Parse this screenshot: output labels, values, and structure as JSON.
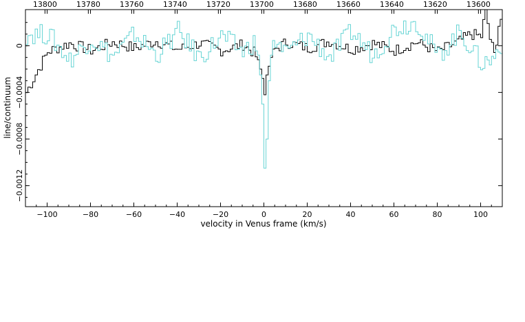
{
  "chart_data": {
    "type": "line",
    "title": "",
    "xlabel": "velocity in Venus frame (km/s)",
    "ylabel": "line/continuum",
    "xlim": [
      -110,
      110
    ],
    "ylim": [
      -0.00138,
      0.00031
    ],
    "x_ticks": [
      -100,
      -80,
      -60,
      -40,
      -20,
      0,
      20,
      40,
      60,
      80,
      100
    ],
    "x_tick_labels": [
      "−100",
      "−80",
      "−60",
      "−40",
      "−20",
      "0",
      "20",
      "40",
      "60",
      "80",
      "100"
    ],
    "y_ticks": [
      0,
      -0.0004,
      -0.0008,
      -0.0012
    ],
    "y_tick_labels": [
      "0",
      "−0.0004",
      "−0.0008",
      "−0.0012"
    ],
    "top_axis": {
      "ticks": [
        13800,
        13780,
        13760,
        13740,
        13720,
        13700,
        13680,
        13660,
        13640,
        13620,
        13600
      ],
      "tick_labels": [
        "13800",
        "13780",
        "13760",
        "13740",
        "13720",
        "13700",
        "13680",
        "13660",
        "13640",
        "13620",
        "13600"
      ],
      "zero_velocity_value": 13699
    },
    "legend": "none",
    "grid": false,
    "series": [
      {
        "color": "#000000",
        "style": "histogram step",
        "x": [
          -110,
          -100,
          -90,
          -80,
          -70,
          -60,
          -50,
          -40,
          -30,
          -20,
          -10,
          -5,
          -3,
          -1,
          0,
          1,
          3,
          5,
          10,
          20,
          30,
          40,
          50,
          60,
          70,
          80,
          90,
          95,
          100,
          102,
          104,
          106,
          108,
          110
        ],
        "y": [
          -0.0004,
          -5e-05,
          2e-05,
          -4e-05,
          3e-05,
          -2e-05,
          4e-05,
          -3e-05,
          2e-05,
          -4e-05,
          1e-05,
          -6e-05,
          -0.00012,
          -0.00028,
          -0.00042,
          -0.00025,
          -0.0001,
          -3e-05,
          3e-05,
          -2e-05,
          4e-05,
          -3e-05,
          2e-05,
          -4e-05,
          3e-05,
          -5e-05,
          4e-05,
          0.0001,
          8e-05,
          0.00032,
          6e-05,
          -8e-05,
          0.00018,
          0.00028
        ]
      },
      {
        "color": "#66d4d4",
        "style": "histogram step",
        "x": [
          -110,
          -100,
          -90,
          -80,
          -70,
          -60,
          -50,
          -40,
          -30,
          -20,
          -10,
          -5,
          -3,
          -2,
          -1,
          0,
          1,
          2,
          3,
          5,
          10,
          20,
          30,
          40,
          50,
          60,
          70,
          80,
          90,
          100,
          105,
          110
        ],
        "y": [
          0.0001,
          0.0001,
          -0.00012,
          6e-05,
          -9e-05,
          0.0001,
          -8e-05,
          0.00012,
          -0.0001,
          8e-05,
          -5e-05,
          3e-05,
          -8e-05,
          -0.00025,
          -0.0005,
          -0.00105,
          -0.0008,
          -0.0003,
          -8e-05,
          4e-05,
          -6e-05,
          9e-05,
          -0.0001,
          0.00012,
          -8e-05,
          0.00015,
          0.00021,
          -9e-05,
          0.00012,
          -0.00015,
          -0.00012,
          5e-05
        ]
      }
    ]
  }
}
